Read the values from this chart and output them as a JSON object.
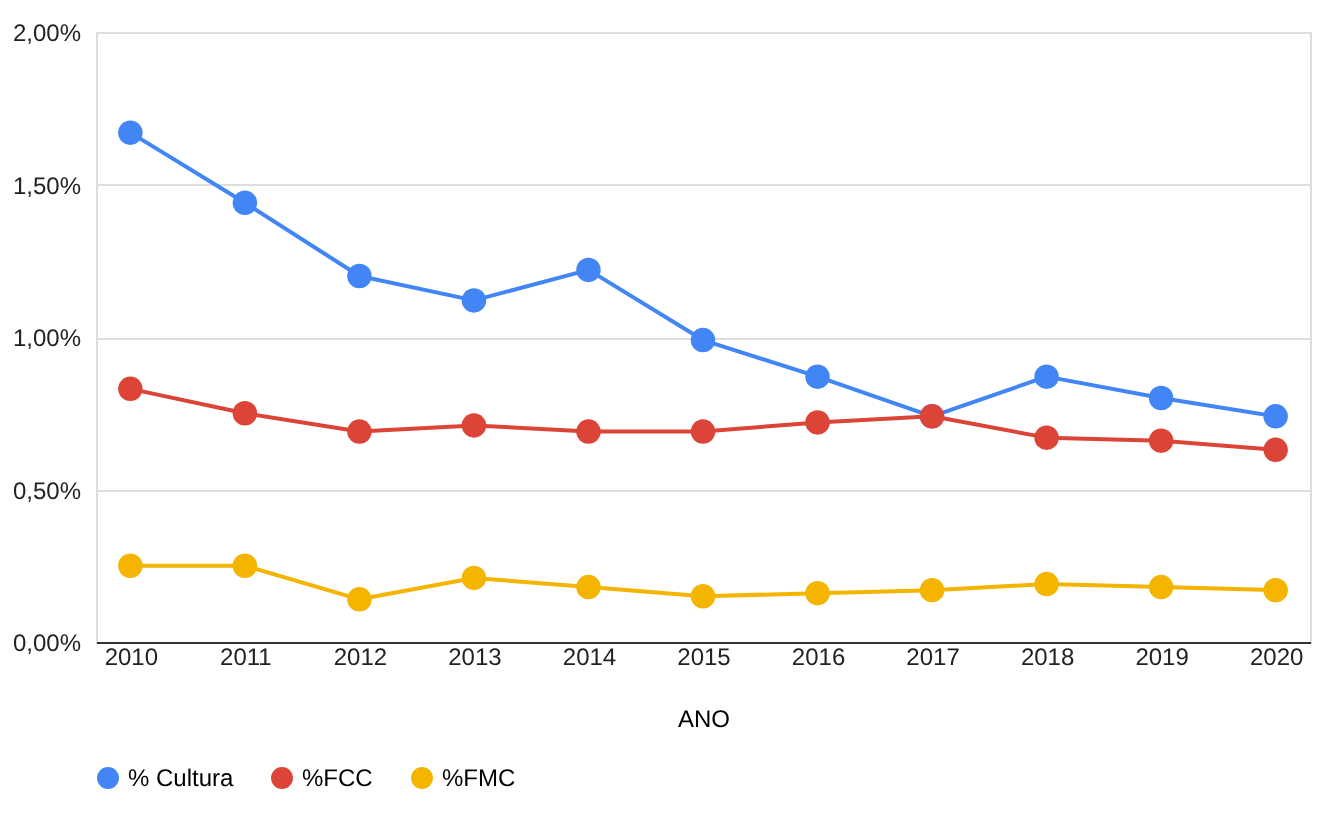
{
  "chart_data": {
    "type": "line",
    "xlabel": "ANO",
    "categories": [
      "2010",
      "2011",
      "2012",
      "2013",
      "2014",
      "2015",
      "2016",
      "2017",
      "2018",
      "2019",
      "2020"
    ],
    "series": [
      {
        "name": "% Cultura",
        "color": "#4285f4",
        "values": [
          1.67,
          1.44,
          1.2,
          1.12,
          1.22,
          0.99,
          0.87,
          0.74,
          0.87,
          0.8,
          0.74
        ]
      },
      {
        "name": "%FCC",
        "color": "#db4437",
        "values": [
          0.83,
          0.75,
          0.69,
          0.71,
          0.69,
          0.69,
          0.72,
          0.74,
          0.67,
          0.66,
          0.63
        ]
      },
      {
        "name": "%FMC",
        "color": "#f4b400",
        "values": [
          0.25,
          0.25,
          0.14,
          0.21,
          0.18,
          0.15,
          0.16,
          0.17,
          0.19,
          0.18,
          0.17
        ]
      }
    ],
    "ylim": [
      0,
      2
    ],
    "yticks": [
      {
        "value": 0,
        "label": "0,00%"
      },
      {
        "value": 0.5,
        "label": "0,50%"
      },
      {
        "value": 1,
        "label": "1,00%"
      },
      {
        "value": 1.5,
        "label": "1,50%"
      },
      {
        "value": 2,
        "label": "2,00%"
      }
    ],
    "grid": "y",
    "legend": "bottom",
    "marker": "circle",
    "line_style": "solid"
  }
}
